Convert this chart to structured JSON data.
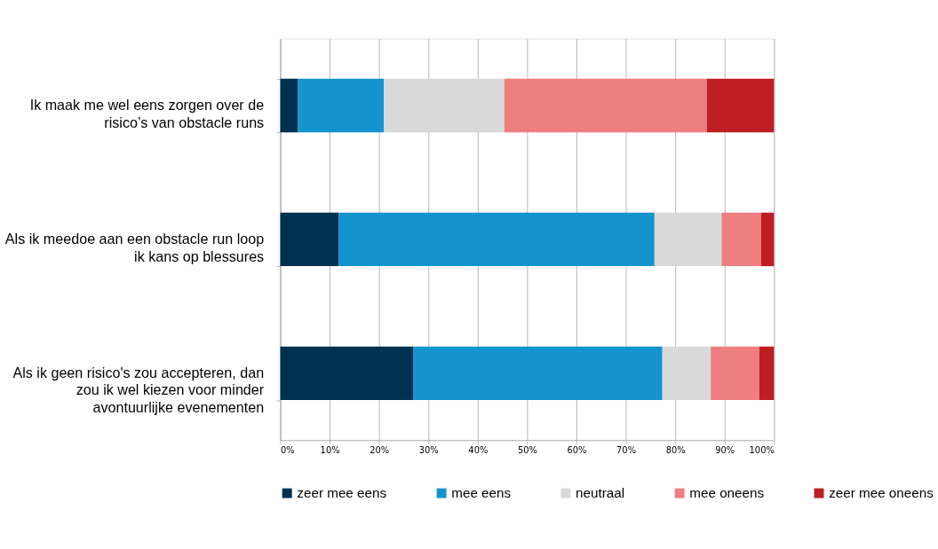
{
  "chart_data": {
    "type": "bar",
    "orientation": "horizontal",
    "stacked": true,
    "categories": [
      "Ik maak me wel eens zorgen over de risico’s van obstacle runs",
      "Als ik meedoe aan een obstacle run loop ik kans op blessures",
      "Als ik geen risico's zou accepteren, dan zou ik wel kiezen voor minder avontuurlijke evenementen"
    ],
    "series": [
      {
        "name": "zeer mee eens",
        "color": "#003150",
        "values": [
          3.6,
          11.8,
          26.9
        ]
      },
      {
        "name": "mee eens",
        "color": "#1493ce",
        "values": [
          17.4,
          64.0,
          50.5
        ]
      },
      {
        "name": "neutraal",
        "color": "#d9d9d9",
        "values": [
          24.4,
          13.6,
          9.8
        ]
      },
      {
        "name": "mee oneens",
        "color": "#ee7e80",
        "values": [
          41.0,
          8.0,
          9.8
        ]
      },
      {
        "name": "zeer mee oneens",
        "color": "#be1e23",
        "values": [
          13.6,
          2.6,
          3.0
        ]
      }
    ],
    "xlim": [
      0,
      100
    ],
    "xticks": [
      {
        "value": 0,
        "label": "0%"
      },
      {
        "value": 10,
        "label": "10%"
      },
      {
        "value": 20,
        "label": "20%"
      },
      {
        "value": 30,
        "label": "30%"
      },
      {
        "value": 40,
        "label": "40%"
      },
      {
        "value": 50,
        "label": "50%"
      },
      {
        "value": 60,
        "label": "60%"
      },
      {
        "value": 70,
        "label": "70%"
      },
      {
        "value": 80,
        "label": "80%"
      },
      {
        "value": 90,
        "label": "90%"
      },
      {
        "value": 100,
        "label": "100%"
      }
    ],
    "grid": "x",
    "legend": "bottom"
  }
}
